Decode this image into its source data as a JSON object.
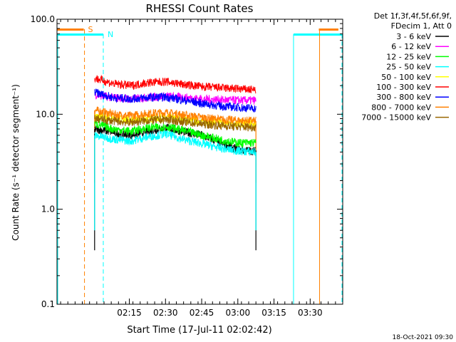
{
  "chart_data": {
    "type": "line",
    "title": "RHESSI Count Rates",
    "xlabel": "Start Time (17-Jul-11 02:02:42)",
    "ylabel": "Count Rate (s⁻¹ detector segment⁻¹)",
    "yscale": "log",
    "ylim": [
      0.1,
      100.0
    ],
    "xlim_minutes": [
      2.5,
      42.0
    ],
    "y_ticks": [
      {
        "value": 100.0,
        "label": "100.0"
      },
      {
        "value": 10.0,
        "label": "10.0"
      },
      {
        "value": 1.0,
        "label": "1.0"
      },
      {
        "value": 0.1,
        "label": "0.1"
      }
    ],
    "x_ticks": [
      {
        "minutes": 12.5,
        "label": "02:15"
      },
      {
        "minutes": 17.5,
        "label": "02:30"
      },
      {
        "minutes": 22.5,
        "label": "02:45"
      },
      {
        "minutes": 27.5,
        "label": "03:00"
      },
      {
        "minutes": 32.5,
        "label": "03:15"
      },
      {
        "minutes": 37.5,
        "label": "03:30"
      }
    ],
    "data_window_minutes": [
      7.7,
      30.0
    ],
    "series": [
      {
        "name": "3 - 6 keV",
        "color": "#000000",
        "values": [
          7.0,
          6.5,
          6.0,
          6.6,
          7.2,
          6.5,
          6.0,
          5.0,
          4.2,
          4.1
        ],
        "spike_low": 0.37
      },
      {
        "name": "6 - 12 keV",
        "color": "#ff00ff",
        "values": [
          16.0,
          15.0,
          14.5,
          15.0,
          15.5,
          15.0,
          14.5,
          14.2,
          14.0,
          14.0
        ]
      },
      {
        "name": "12 - 25 keV",
        "color": "#00ff00",
        "values": [
          8.0,
          7.0,
          6.6,
          7.2,
          7.4,
          6.7,
          6.0,
          5.4,
          5.0,
          5.0
        ]
      },
      {
        "name": "25 - 50 keV",
        "color": "#00ffff",
        "values": [
          6.0,
          5.5,
          5.2,
          5.8,
          6.2,
          5.4,
          4.9,
          4.4,
          4.1,
          4.0
        ],
        "spike_low": 0.6
      },
      {
        "name": "50 - 100 keV",
        "color": "#ffff00",
        "values": [
          9.5,
          9.0,
          8.6,
          9.0,
          9.2,
          8.8,
          8.4,
          8.2,
          8.0,
          8.0
        ]
      },
      {
        "name": "100 - 300 keV",
        "color": "#ff0000",
        "values": [
          24.0,
          21.0,
          20.0,
          21.5,
          22.0,
          20.5,
          19.5,
          19.0,
          18.5,
          18.0
        ]
      },
      {
        "name": "300 - 800 keV",
        "color": "#0000ff",
        "values": [
          17.0,
          15.0,
          14.5,
          15.0,
          15.2,
          14.0,
          13.0,
          12.2,
          11.8,
          11.5
        ]
      },
      {
        "name": "800 - 7000 keV",
        "color": "#ff8000",
        "values": [
          11.0,
          10.0,
          9.6,
          10.2,
          10.4,
          9.8,
          9.2,
          8.8,
          8.6,
          8.5
        ],
        "spike_low": 1.9
      },
      {
        "name": "7000 - 15000 keV",
        "color": "#996600",
        "values": [
          9.0,
          8.5,
          8.2,
          8.6,
          8.8,
          8.3,
          7.9,
          7.6,
          7.4,
          7.3
        ]
      }
    ],
    "annotations": {
      "saa_label": "S",
      "night_label": "N",
      "detector_info_line1": "Det 1f,3f,4f,5f,6f,9f,",
      "detector_info_line2": "FDecim 1, Att 0",
      "timestamp": "18-Oct-2021 09:30",
      "saa_color": "#ff8000",
      "night_color": "#00ffff",
      "saa_bars_minutes": [
        [
          2.5,
          6.2
        ],
        [
          38.7,
          41.4
        ]
      ],
      "night_bars_minutes": [
        [
          2.5,
          8.9
        ],
        [
          35.2,
          41.9
        ]
      ],
      "saa_solid_lines_minutes": [
        38.8
      ],
      "saa_dashed_lines_minutes": [
        6.3
      ],
      "night_solid_lines_minutes": [
        2.6,
        35.2
      ],
      "night_dashed_lines_minutes": [
        8.9,
        41.9
      ]
    }
  }
}
